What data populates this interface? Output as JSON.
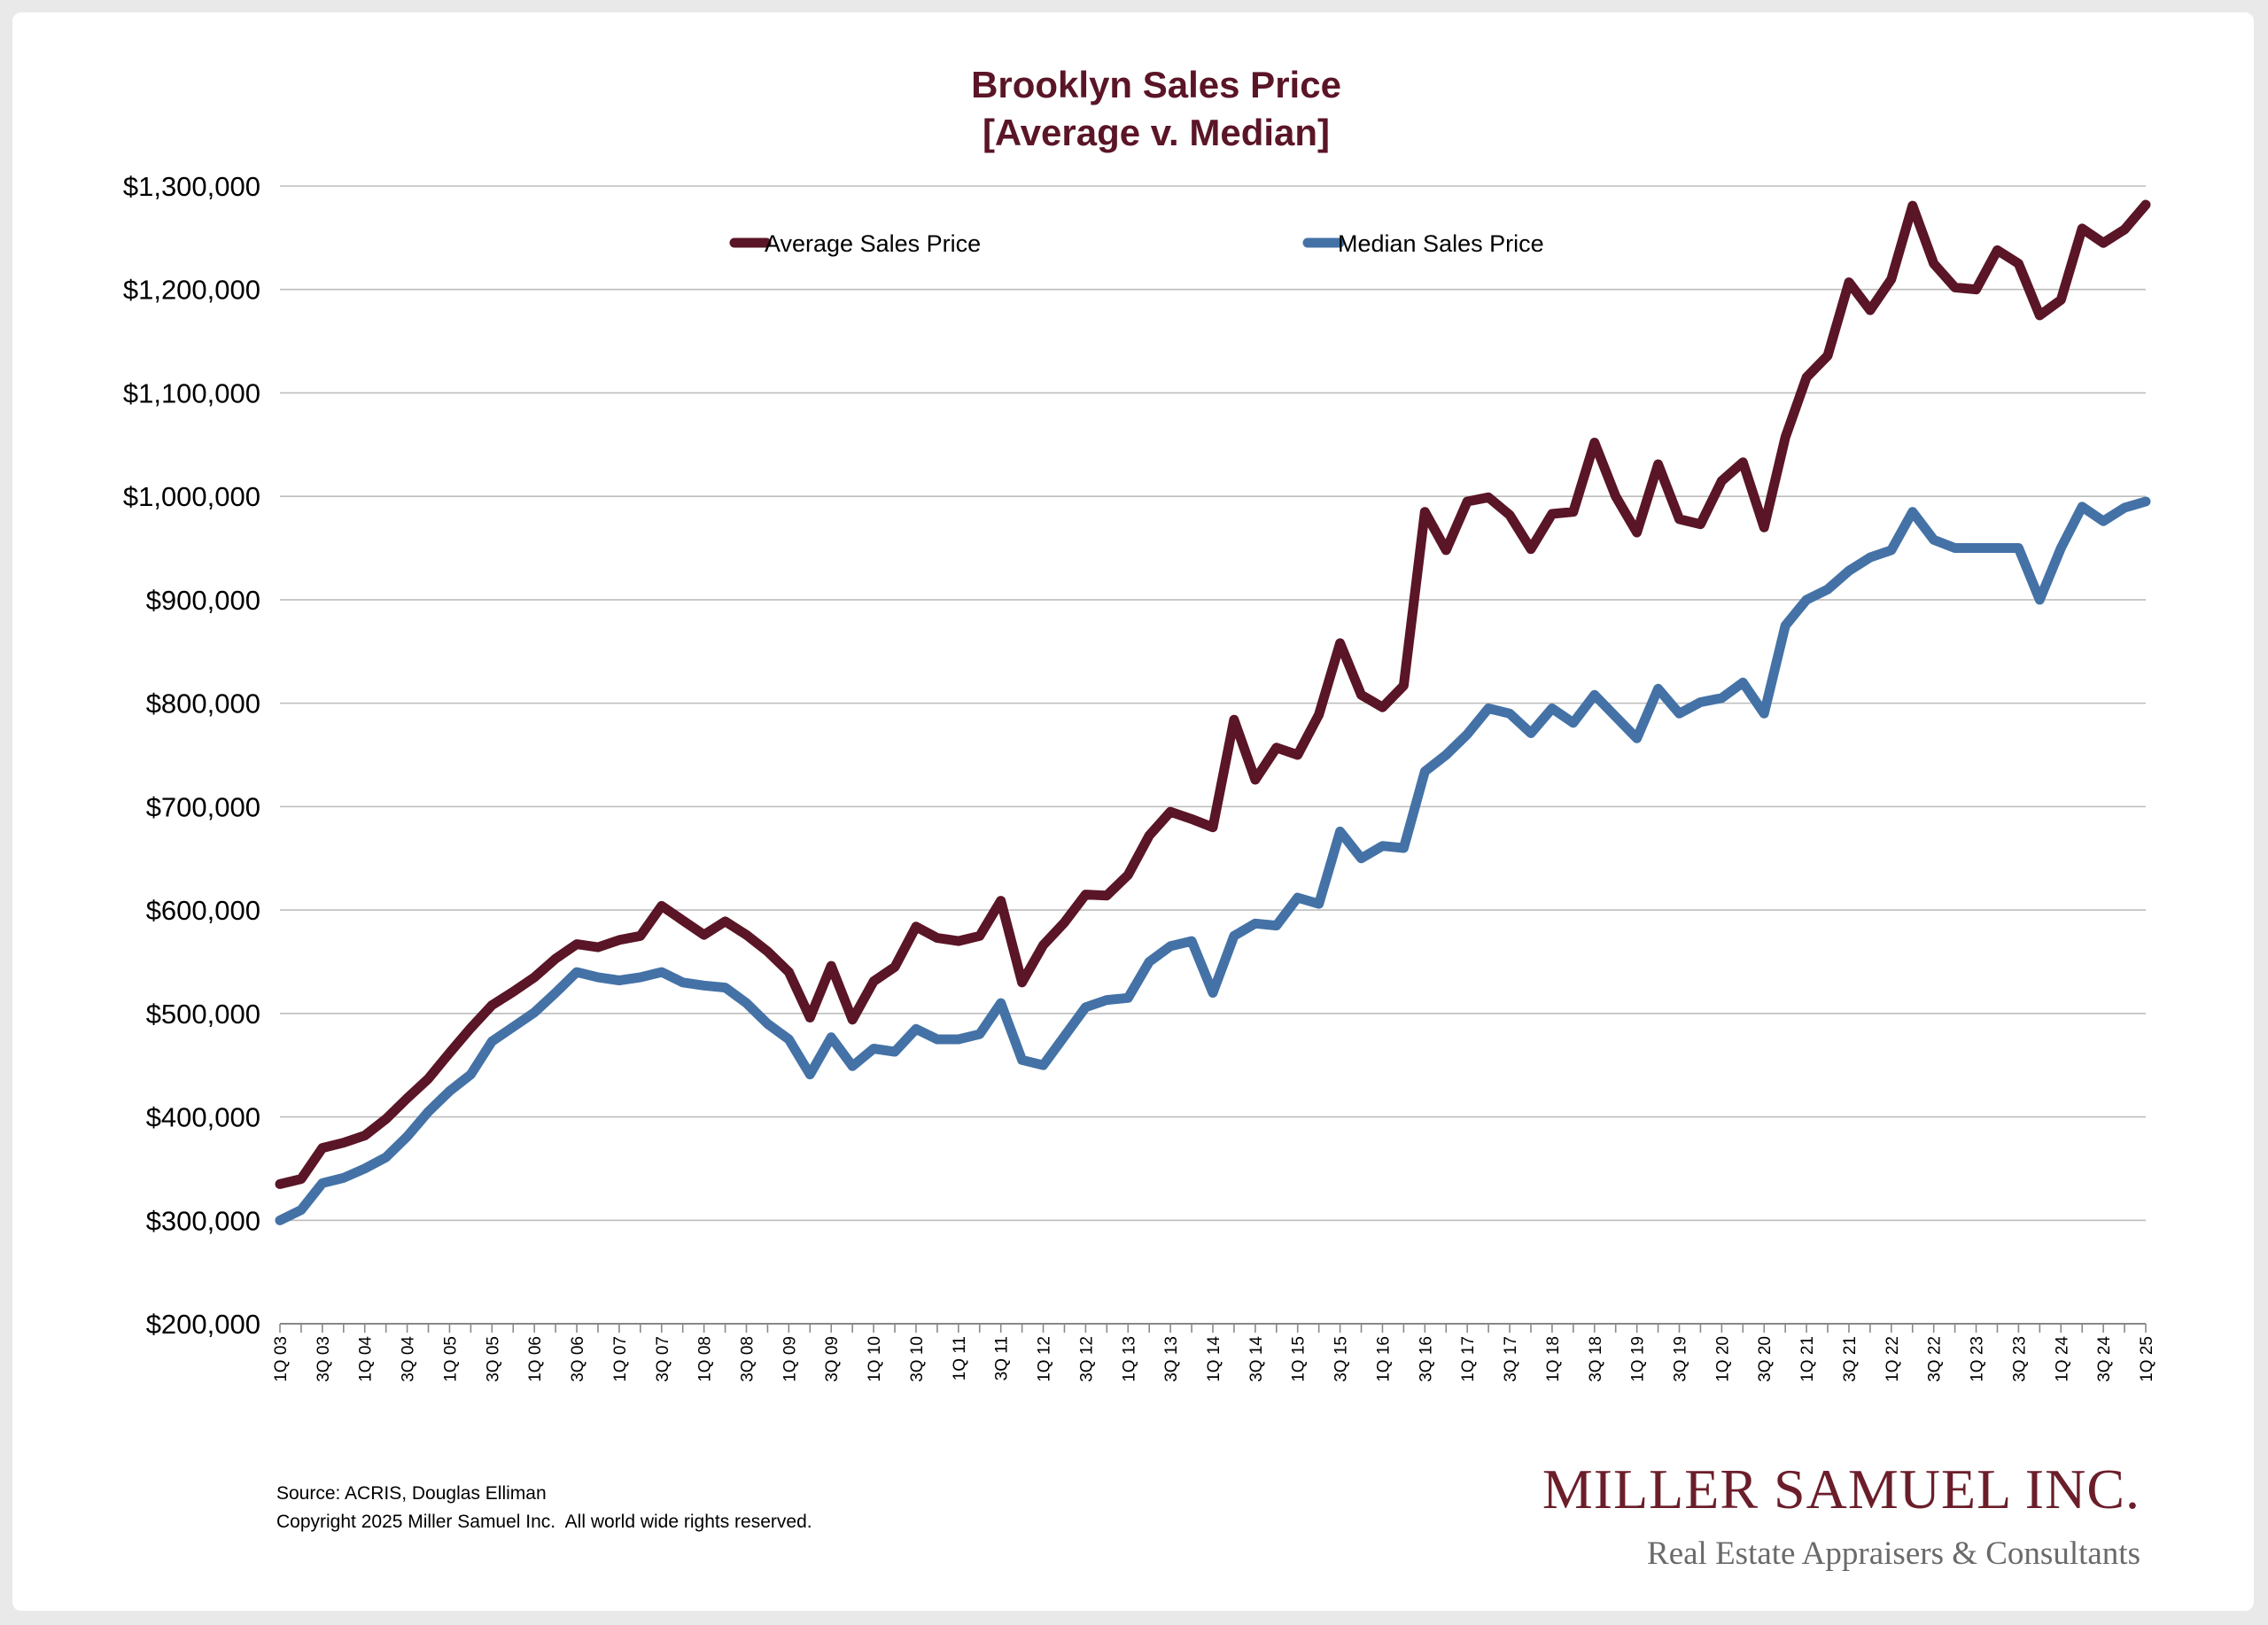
{
  "colors": {
    "average": "#5a1526",
    "median": "#4472a6",
    "title": "#5a1526"
  },
  "chart_data": {
    "type": "line",
    "title": "Brooklyn Sales Price",
    "subtitle": "[Average v. Median]",
    "ylim": [
      200000,
      1300000
    ],
    "y_ticks": [
      "$200,000",
      "$300,000",
      "$400,000",
      "$500,000",
      "$600,000",
      "$700,000",
      "$800,000",
      "$900,000",
      "$1,000,000",
      "$1,100,000",
      "$1,200,000",
      "$1,300,000"
    ],
    "x_tick_labels": [
      "1Q 03",
      "3Q 03",
      "1Q 04",
      "3Q 04",
      "1Q 05",
      "3Q 05",
      "1Q 06",
      "3Q 06",
      "1Q 07",
      "3Q 07",
      "1Q 08",
      "3Q 08",
      "1Q 09",
      "3Q 09",
      "1Q 10",
      "3Q 10",
      "1Q 11",
      "3Q 11",
      "1Q 12",
      "3Q 12",
      "1Q 13",
      "3Q 13",
      "1Q 14",
      "3Q 14",
      "1Q 15",
      "3Q 15",
      "1Q 16",
      "3Q 16",
      "1Q 17",
      "3Q 17",
      "1Q 18",
      "3Q 18",
      "1Q 19",
      "3Q 19",
      "1Q 20",
      "3Q 20",
      "1Q 21",
      "3Q 21",
      "1Q 22",
      "3Q 22",
      "1Q 23",
      "3Q 23",
      "1Q 24",
      "3Q 24",
      "1Q 25"
    ],
    "x": [
      "1Q 03",
      "2Q 03",
      "3Q 03",
      "4Q 03",
      "1Q 04",
      "2Q 04",
      "3Q 04",
      "4Q 04",
      "1Q 05",
      "2Q 05",
      "3Q 05",
      "4Q 05",
      "1Q 06",
      "2Q 06",
      "3Q 06",
      "4Q 06",
      "1Q 07",
      "2Q 07",
      "3Q 07",
      "4Q 07",
      "1Q 08",
      "2Q 08",
      "3Q 08",
      "4Q 08",
      "1Q 09",
      "2Q 09",
      "3Q 09",
      "4Q 09",
      "1Q 10",
      "2Q 10",
      "3Q 10",
      "4Q 10",
      "1Q 11",
      "2Q 11",
      "3Q 11",
      "4Q 11",
      "1Q 12",
      "2Q 12",
      "3Q 12",
      "4Q 12",
      "1Q 13",
      "2Q 13",
      "3Q 13",
      "4Q 13",
      "1Q 14",
      "2Q 14",
      "3Q 14",
      "4Q 14",
      "1Q 15",
      "2Q 15",
      "3Q 15",
      "4Q 15",
      "1Q 16",
      "2Q 16",
      "3Q 16",
      "4Q 16",
      "1Q 17",
      "2Q 17",
      "3Q 17",
      "4Q 17",
      "1Q 18",
      "2Q 18",
      "3Q 18",
      "4Q 18",
      "1Q 19",
      "2Q 19",
      "3Q 19",
      "4Q 19",
      "1Q 20",
      "2Q 20",
      "3Q 20",
      "4Q 20",
      "1Q 21",
      "2Q 21",
      "3Q 21",
      "4Q 21",
      "1Q 22",
      "2Q 22",
      "3Q 22",
      "4Q 22",
      "1Q 23",
      "2Q 23",
      "3Q 23",
      "4Q 23",
      "1Q 24",
      "2Q 24",
      "3Q 24",
      "4Q 24",
      "1Q 25"
    ],
    "series": [
      {
        "name": "Average Sales Price",
        "values": [
          335000,
          340000,
          370000,
          375000,
          382000,
          398000,
          418000,
          437000,
          462000,
          486000,
          508000,
          521000,
          535000,
          553000,
          567000,
          564000,
          571000,
          575000,
          604000,
          590000,
          576000,
          589000,
          576000,
          560000,
          540000,
          496000,
          546000,
          494000,
          531000,
          545000,
          584000,
          573000,
          570000,
          575000,
          609000,
          530000,
          566000,
          588000,
          615000,
          614000,
          634000,
          672000,
          695000,
          688000,
          680000,
          784000,
          726000,
          757000,
          750000,
          789000,
          858000,
          808000,
          796000,
          817000,
          985000,
          948000,
          995000,
          999000,
          982000,
          949000,
          983000,
          985000,
          1052000,
          1000000,
          965000,
          1031000,
          978000,
          973000,
          1015000,
          1033000,
          970000,
          1057000,
          1115000,
          1136000,
          1207000,
          1180000,
          1210000,
          1281000,
          1225000,
          1202000,
          1200000,
          1238000,
          1225000,
          1175000,
          1190000,
          1259000,
          1245000,
          1258000,
          1282000
        ]
      },
      {
        "name": "Median Sales Price",
        "values": [
          300000,
          310000,
          336000,
          341000,
          350000,
          361000,
          381000,
          405000,
          425000,
          441000,
          473000,
          487000,
          501000,
          520000,
          540000,
          535000,
          532000,
          535000,
          540000,
          530000,
          527000,
          525000,
          510000,
          490000,
          475000,
          441000,
          477000,
          449000,
          466000,
          463000,
          485000,
          475000,
          475000,
          480000,
          510000,
          455000,
          450000,
          478000,
          506000,
          513000,
          515000,
          550000,
          565000,
          570000,
          520000,
          575000,
          587000,
          585000,
          612000,
          606000,
          676000,
          650000,
          662000,
          660000,
          734000,
          750000,
          770000,
          795000,
          790000,
          771000,
          795000,
          781000,
          808000,
          787000,
          766000,
          814000,
          790000,
          801000,
          805000,
          820000,
          790000,
          875000,
          900000,
          910000,
          928000,
          941000,
          948000,
          985000,
          958000,
          950000,
          950000,
          950000,
          950000,
          900000,
          950000,
          990000,
          976000,
          989000,
          995000
        ]
      }
    ]
  },
  "footer": {
    "source": "Source: ACRIS, Douglas Elliman",
    "copyright": "Copyright 2025 Miller Samuel Inc.  All world wide rights reserved."
  },
  "logo": {
    "name": "MILLER SAMUEL INC.",
    "tagline": "Real Estate Appraisers & Consultants"
  }
}
